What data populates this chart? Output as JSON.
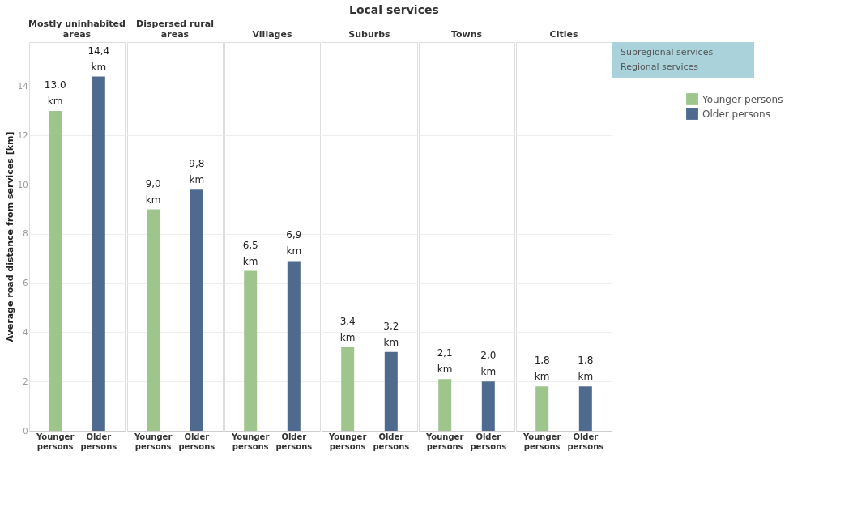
{
  "chart_data": {
    "type": "bar",
    "title": "Local services",
    "ylabel": "Average road distance from services [km]",
    "categories": [
      "Younger persons",
      "Older persons",
      "Younger persons",
      "Older persons",
      "Younger persons",
      "Older persons",
      "Younger persons",
      "Older persons",
      "Younger persons",
      "Older persons",
      "Younger persons",
      "Older persons"
    ],
    "series": [
      {
        "name": "Younger persons",
        "color": "#93bf7e",
        "values": [
          13.0,
          null,
          9.0,
          null,
          6.5,
          null,
          3.4,
          null,
          2.1,
          null,
          1.8,
          null
        ],
        "value_labels": [
          "13,0 km",
          null,
          "9,0 km",
          null,
          "6,5 km",
          null,
          "3,4 km",
          null,
          "2,1 km",
          null,
          "1,8 km",
          null
        ]
      },
      {
        "name": "Older persons",
        "color": "#3b5b83",
        "values": [
          null,
          14.4,
          null,
          9.8,
          null,
          6.9,
          null,
          3.2,
          null,
          2.0,
          null,
          1.8
        ],
        "value_labels": [
          null,
          "14,4 km",
          null,
          "9,8 km",
          null,
          "6,9 km",
          null,
          "3,2 km",
          null,
          "2,0 km",
          null,
          "1,8 km"
        ]
      }
    ],
    "annotations": [
      "Mostly uninhabited areas",
      "Dispersed rural areas",
      "Villages",
      "Suburbs",
      "Towns",
      "Cities",
      "Subregional services",
      "Regional services"
    ],
    "ylim": [
      0,
      15.8
    ],
    "yticks": [
      0,
      2,
      4,
      6,
      8,
      10,
      12,
      14
    ],
    "grid": "y",
    "legend": "top right"
  }
}
